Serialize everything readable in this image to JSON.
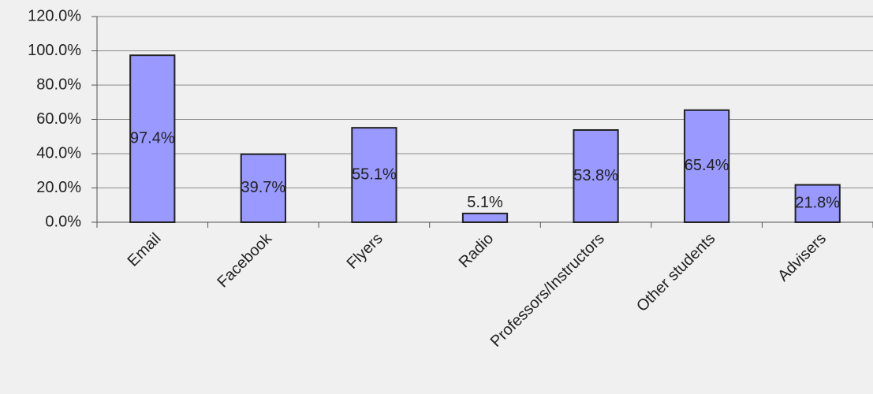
{
  "chart_data": {
    "type": "bar",
    "categories": [
      "Email",
      "Facebook",
      "Flyers",
      "Radio",
      "Professors/Instructors",
      "Other students",
      "Advisers"
    ],
    "values": [
      97.4,
      39.7,
      55.1,
      5.1,
      53.8,
      65.4,
      21.8
    ],
    "value_labels": [
      "97.4%",
      "39.7%",
      "55.1%",
      "5.1%",
      "53.8%",
      "65.4%",
      "21.8%"
    ],
    "color": "#9999ff",
    "ylim": [
      0,
      120
    ],
    "yticks": [
      {
        "value": 0,
        "label": "0.0%"
      },
      {
        "value": 20,
        "label": "20.0%"
      },
      {
        "value": 40,
        "label": "40.0%"
      },
      {
        "value": 60,
        "label": "60.0%"
      },
      {
        "value": 80,
        "label": "80.0%"
      },
      {
        "value": 100,
        "label": "100.0%"
      },
      {
        "value": 120,
        "label": "120.0%"
      }
    ],
    "grid": true
  }
}
